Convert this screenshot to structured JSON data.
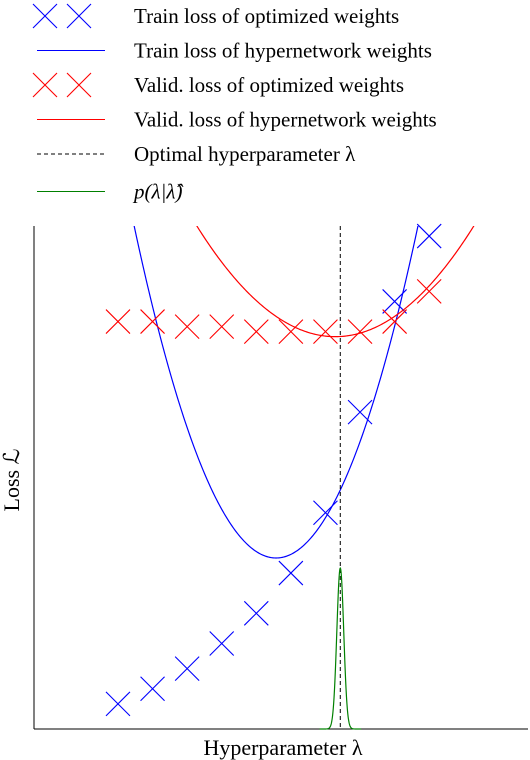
{
  "chart_data": {
    "type": "line",
    "title": "",
    "xlabel": "Hyperparameter λ",
    "ylabel": "Loss ℒ",
    "x_ticks": false,
    "y_ticks": false,
    "grid": false,
    "legend_position": "top",
    "colors": {
      "train": "#0000ff",
      "valid": "#ff0000",
      "optimal": "#000000",
      "density": "#008000"
    },
    "series": [
      {
        "name": "Train loss of optimized weights",
        "kind": "markers",
        "marker": "x",
        "color": "#0000ff",
        "x": [
          0.17,
          0.24,
          0.31,
          0.38,
          0.45,
          0.52,
          0.59,
          0.66,
          0.73,
          0.8
        ],
        "y": [
          0.05,
          0.08,
          0.12,
          0.17,
          0.23,
          0.31,
          0.43,
          0.63,
          0.85,
          0.98
        ]
      },
      {
        "name": "Train loss of hypernetwork weights",
        "kind": "curve",
        "color": "#0000ff",
        "shape": "quadratic",
        "vertex": [
          0.49,
          0.34
        ],
        "curvature": 2.0
      },
      {
        "name": "Valid. loss of optimized weights",
        "kind": "markers",
        "marker": "x",
        "color": "#ff0000",
        "x": [
          0.17,
          0.24,
          0.31,
          0.38,
          0.45,
          0.52,
          0.59,
          0.66,
          0.73,
          0.8
        ],
        "y": [
          0.81,
          0.81,
          0.8,
          0.8,
          0.79,
          0.79,
          0.79,
          0.79,
          0.81,
          0.87
        ]
      },
      {
        "name": "Valid. loss of hypernetwork weights",
        "kind": "curve",
        "color": "#ff0000",
        "shape": "quadratic",
        "vertex": [
          0.61,
          0.78
        ],
        "curvature": 0.7
      },
      {
        "name": "Optimal hyperparameter λ",
        "kind": "vline",
        "color": "#000000",
        "dashed": true,
        "x": 0.62
      },
      {
        "name": "p(λ|λ̂)",
        "kind": "density",
        "color": "#008000",
        "center": 0.62,
        "width": 0.007,
        "peak": 0.32
      }
    ]
  }
}
